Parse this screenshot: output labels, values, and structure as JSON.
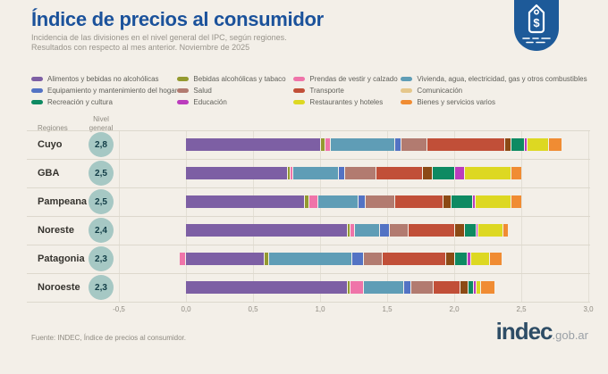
{
  "palette": {
    "background": "#f3efe8",
    "title_blue": "#1b529b",
    "badge_blue": "#1d5a99",
    "subtitle_gray": "#98948b",
    "nivel_circle_bg": "#a6c8c4",
    "nivel_circle_text": "#113c46",
    "grid_line": "#e3dfd5",
    "row_line": "#ddd8cd",
    "axis_text": "#8f8b82",
    "region_text": "#35332e",
    "legend_text": "#60605a",
    "logo_navy": "#2e4d66",
    "logo_gray": "#9aa0a6"
  },
  "header": {
    "title": "Índice de precios al consumidor",
    "subtitle_line1": "Incidencia de las divisiones en el nivel general del IPC, según regiones.",
    "subtitle_line2": "Resultados con respecto al mes anterior. Noviembre de 2025"
  },
  "badge": {
    "icon": "price-tag-icon",
    "symbol": "$"
  },
  "table": {
    "col1_header": "Regiones",
    "col2_header": "Nivel\ngeneral"
  },
  "chart_data": {
    "type": "bar",
    "orientation": "horizontal",
    "stacked": true,
    "title": "Índice de precios al consumidor",
    "subtitle": "Incidencia de las divisiones en el nivel general del IPC, según regiones. Resultados con respecto al mes anterior. Noviembre de 2025",
    "categories": [
      "Cuyo",
      "GBA",
      "Pampeana",
      "Noreste",
      "Patagonia",
      "Noroeste"
    ],
    "nivel_general": [
      "2,8",
      "2,5",
      "2,5",
      "2,4",
      "2,3",
      "2,3"
    ],
    "xlim": [
      -0.5,
      3.0
    ],
    "x_ticks": [
      -0.5,
      0.0,
      0.5,
      1.0,
      1.5,
      2.0,
      2.5,
      3.0
    ],
    "grid": true,
    "legend_position": "top",
    "legend_column_map": [
      [
        0,
        4,
        8
      ],
      [
        1,
        5,
        9
      ],
      [
        2,
        6,
        10
      ],
      [
        3,
        7,
        11
      ]
    ],
    "series": [
      {
        "name": "Alimentos y bebidas no alcohólicas",
        "color": "#7d5fa4",
        "values": [
          1.0,
          0.75,
          0.88,
          1.2,
          0.58,
          1.2
        ]
      },
      {
        "name": "Bebidas alcohólicas y tabaco",
        "color": "#949a30",
        "values": [
          0.03,
          0.02,
          0.03,
          0.02,
          0.03,
          0.02
        ]
      },
      {
        "name": "Prendas de vestir y calzado",
        "color": "#ef74a9",
        "values": [
          0.04,
          0.02,
          0.07,
          0.03,
          -0.05,
          0.1
        ]
      },
      {
        "name": "Vivienda, agua, electricidad, gas y otros combustibles",
        "color": "#5f9db6",
        "values": [
          0.48,
          0.34,
          0.3,
          0.19,
          0.62,
          0.3
        ]
      },
      {
        "name": "Equipamiento y mantenimiento del hogar",
        "color": "#5373c4",
        "values": [
          0.05,
          0.05,
          0.05,
          0.07,
          0.09,
          0.05
        ]
      },
      {
        "name": "Salud",
        "color": "#b27b70",
        "values": [
          0.19,
          0.23,
          0.22,
          0.14,
          0.14,
          0.17
        ]
      },
      {
        "name": "Transporte",
        "color": "#c14f38",
        "values": [
          0.58,
          0.35,
          0.36,
          0.35,
          0.47,
          0.2
        ]
      },
      {
        "name": "Comunicación",
        "color": "#8c4a15",
        "legend_color": "#e5c78b",
        "values": [
          0.05,
          0.07,
          0.06,
          0.07,
          0.07,
          0.06
        ]
      },
      {
        "name": "Recreación y cultura",
        "color": "#0e8a62",
        "values": [
          0.1,
          0.17,
          0.16,
          0.09,
          0.09,
          0.04
        ]
      },
      {
        "name": "Educación",
        "color": "#bb3cbd",
        "values": [
          0.02,
          0.07,
          0.02,
          0.01,
          0.03,
          0.02
        ]
      },
      {
        "name": "Restaurantes y hoteles",
        "color": "#ddd822",
        "values": [
          0.16,
          0.35,
          0.27,
          0.19,
          0.14,
          0.03
        ]
      },
      {
        "name": "Bienes y servicios varios",
        "color": "#f08c33",
        "values": [
          0.1,
          0.08,
          0.08,
          0.04,
          0.09,
          0.11
        ]
      }
    ]
  },
  "footer": {
    "source": "Fuente: INDEC, Índice de precios al consumidor.",
    "logo_bold": "indec",
    "logo_suffix": ".gob.ar"
  }
}
